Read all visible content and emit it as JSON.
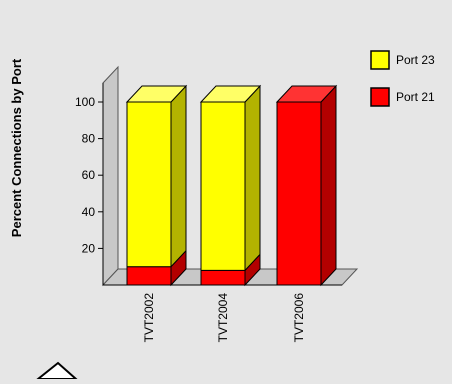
{
  "chart_data": {
    "type": "bar",
    "stacked": true,
    "three_d": true,
    "ylabel": "Percent Connections by Port",
    "xlabel": "",
    "ylim": [
      0,
      100
    ],
    "yticks": [
      20,
      40,
      60,
      80,
      100
    ],
    "categories": [
      "TVT2002",
      "TVT2004",
      "TVT2006"
    ],
    "series": [
      {
        "name": "Port 21",
        "values": [
          10,
          8,
          100
        ],
        "color": "#ff0000",
        "side_color": "#b30000",
        "top_color": "#ff3333"
      },
      {
        "name": "Port 23",
        "values": [
          90,
          92,
          0
        ],
        "color": "#ffff00",
        "side_color": "#b3b300",
        "top_color": "#ffff66"
      }
    ],
    "legend": {
      "position": "right",
      "order": [
        "Port 23",
        "Port 21"
      ]
    },
    "grid": false,
    "background": "#e6e6e6"
  }
}
